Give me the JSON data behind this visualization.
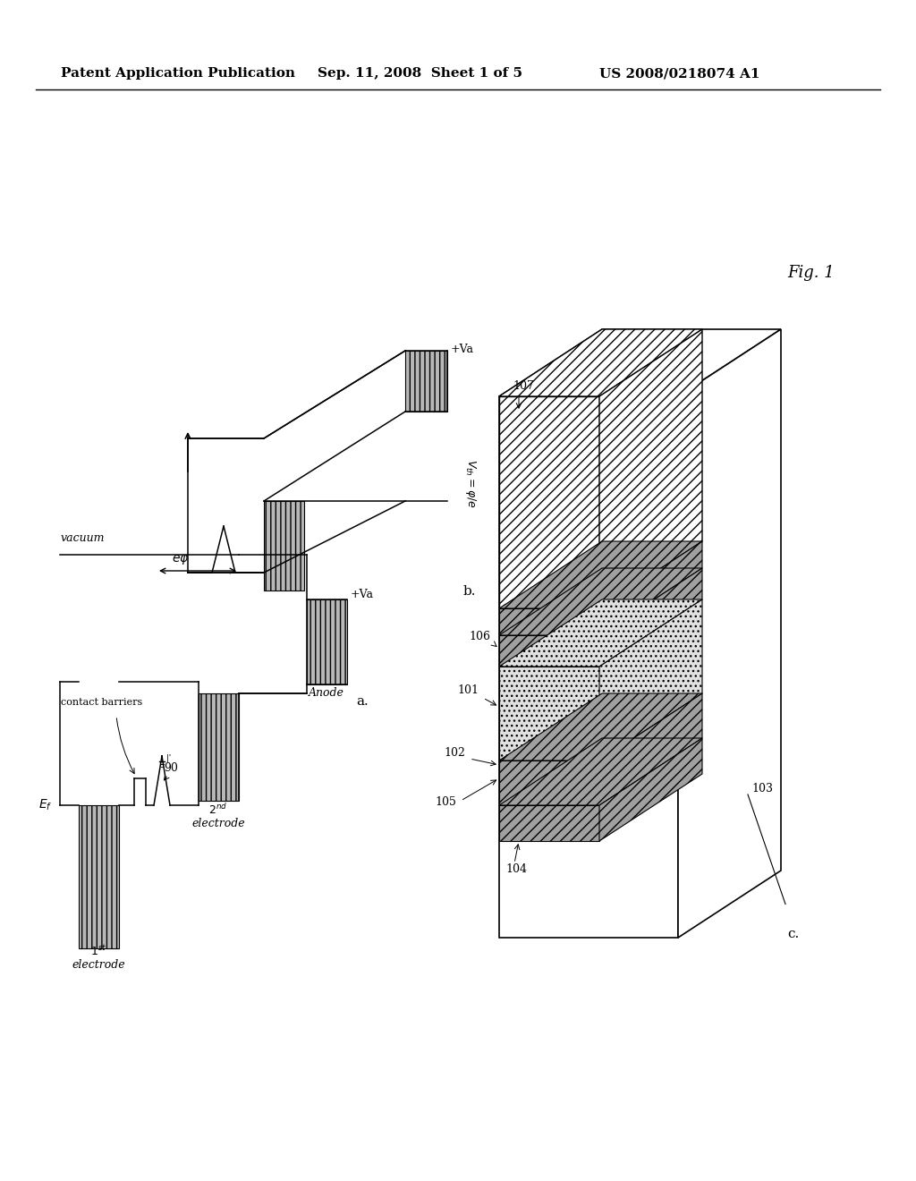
{
  "bg_color": "#ffffff",
  "header_left": "Patent Application Publication",
  "header_mid": "Sep. 11, 2008  Sheet 1 of 5",
  "header_right": "US 2008/0218074 A1",
  "fig_label": "Fig. 1"
}
